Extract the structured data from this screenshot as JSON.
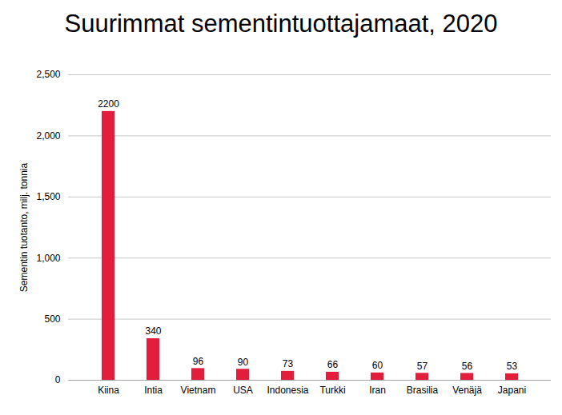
{
  "chart_data": {
    "type": "bar",
    "title": "Suurimmat sementintuottajamaat, 2020",
    "y_label": "Sementin tuotanto, milj. tonnia",
    "categories": [
      "Kiina",
      "Intia",
      "Vietnam",
      "USA",
      "Indonesia",
      "Turkki",
      "Iran",
      "Brasilia",
      "Venäjä",
      "Japani"
    ],
    "values": [
      2200,
      340,
      96,
      90,
      73,
      66,
      60,
      57,
      56,
      53
    ],
    "color": "#e31e3c",
    "ylim": [
      0,
      2500
    ],
    "yticks": [
      0,
      500,
      1000,
      1500,
      2000,
      2500
    ],
    "grid": true,
    "data_labels": true
  }
}
